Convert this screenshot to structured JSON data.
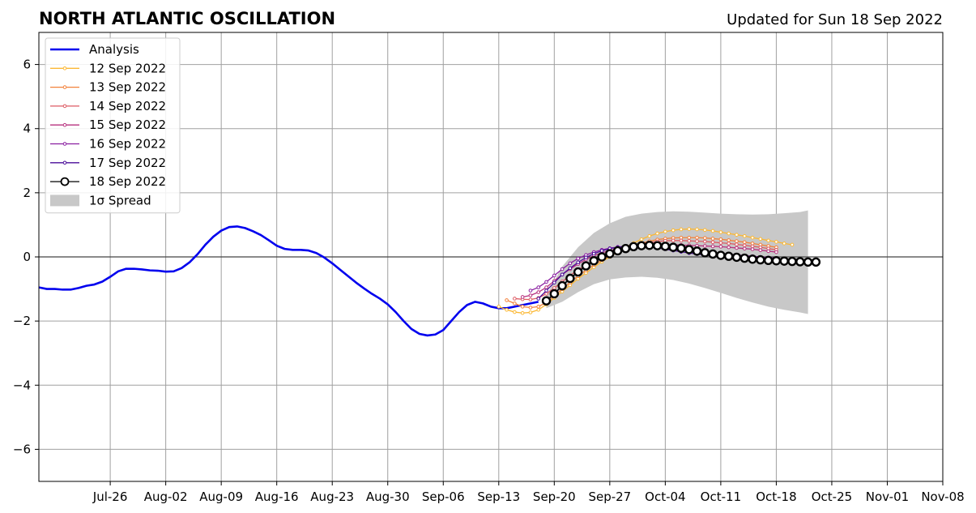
{
  "chart_data": {
    "type": "line",
    "title": "NORTH ATLANTIC OSCILLATION",
    "subtitle": "Updated for Sun 18 Sep 2022",
    "ylim": [
      -7,
      7
    ],
    "yticks": [
      -6,
      -4,
      -2,
      0,
      2,
      4,
      6
    ],
    "ytick_labels": [
      "−6",
      "−4",
      "−2",
      "0",
      "2",
      "4",
      "6"
    ],
    "xlim": [
      "2022-07-17",
      "2022-11-08"
    ],
    "xtick_dates": [
      "2022-07-26",
      "2022-08-02",
      "2022-08-09",
      "2022-08-16",
      "2022-08-23",
      "2022-08-30",
      "2022-09-06",
      "2022-09-13",
      "2022-09-20",
      "2022-09-27",
      "2022-10-04",
      "2022-10-11",
      "2022-10-18",
      "2022-10-25",
      "2022-11-01",
      "2022-11-08"
    ],
    "xtick_labels": [
      "Jul-26",
      "Aug-02",
      "Aug-09",
      "Aug-16",
      "Aug-23",
      "Aug-30",
      "Sep-06",
      "Sep-13",
      "Sep-20",
      "Sep-27",
      "Oct-04",
      "Oct-11",
      "Oct-18",
      "Oct-25",
      "Nov-01",
      "Nov-08"
    ],
    "grid": true,
    "zero_line": true,
    "legend_position": "top-left",
    "analysis": {
      "name": "Analysis",
      "color": "#0000ee",
      "x": [
        "2022-07-17",
        "2022-07-18",
        "2022-07-19",
        "2022-07-20",
        "2022-07-21",
        "2022-07-22",
        "2022-07-23",
        "2022-07-24",
        "2022-07-25",
        "2022-07-26",
        "2022-07-27",
        "2022-07-28",
        "2022-07-29",
        "2022-07-30",
        "2022-07-31",
        "2022-08-01",
        "2022-08-02",
        "2022-08-03",
        "2022-08-04",
        "2022-08-05",
        "2022-08-06",
        "2022-08-07",
        "2022-08-08",
        "2022-08-09",
        "2022-08-10",
        "2022-08-11",
        "2022-08-12",
        "2022-08-13",
        "2022-08-14",
        "2022-08-15",
        "2022-08-16",
        "2022-08-17",
        "2022-08-18",
        "2022-08-19",
        "2022-08-20",
        "2022-08-21",
        "2022-08-22",
        "2022-08-23",
        "2022-08-24",
        "2022-08-25",
        "2022-08-26",
        "2022-08-27",
        "2022-08-28",
        "2022-08-29",
        "2022-08-30",
        "2022-08-31",
        "2022-09-01",
        "2022-09-02",
        "2022-09-03",
        "2022-09-04",
        "2022-09-05",
        "2022-09-06",
        "2022-09-07",
        "2022-09-08",
        "2022-09-09",
        "2022-09-10",
        "2022-09-11",
        "2022-09-12",
        "2022-09-13",
        "2022-09-14",
        "2022-09-15",
        "2022-09-16",
        "2022-09-17",
        "2022-09-18"
      ],
      "y": [
        -0.95,
        -1.0,
        -1.0,
        -1.02,
        -1.02,
        -0.97,
        -0.9,
        -0.86,
        -0.77,
        -0.62,
        -0.45,
        -0.37,
        -0.37,
        -0.39,
        -0.42,
        -0.43,
        -0.46,
        -0.45,
        -0.35,
        -0.17,
        0.08,
        0.38,
        0.63,
        0.82,
        0.93,
        0.95,
        0.9,
        0.8,
        0.68,
        0.52,
        0.35,
        0.25,
        0.22,
        0.22,
        0.2,
        0.12,
        -0.02,
        -0.2,
        -0.4,
        -0.6,
        -0.8,
        -0.98,
        -1.15,
        -1.3,
        -1.48,
        -1.72,
        -2.0,
        -2.25,
        -2.4,
        -2.45,
        -2.42,
        -2.28,
        -2.0,
        -1.72,
        -1.5,
        -1.4,
        -1.45,
        -1.55,
        -1.6,
        -1.6,
        -1.55,
        -1.5,
        -1.45,
        -1.4
      ]
    },
    "forecasts": [
      {
        "name": "12 Sep 2022",
        "color": "#fbb834",
        "start": "2022-09-13",
        "y": [
          -1.55,
          -1.65,
          -1.72,
          -1.75,
          -1.73,
          -1.65,
          -1.48,
          -1.28,
          -1.08,
          -0.88,
          -0.68,
          -0.5,
          -0.32,
          -0.15,
          0.0,
          0.15,
          0.3,
          0.43,
          0.55,
          0.65,
          0.73,
          0.79,
          0.83,
          0.86,
          0.87,
          0.86,
          0.84,
          0.81,
          0.77,
          0.73,
          0.69,
          0.65,
          0.6,
          0.56,
          0.51,
          0.47,
          0.42,
          0.38
        ]
      },
      {
        "name": "13 Sep 2022",
        "color": "#f3813a",
        "start": "2022-09-14",
        "y": [
          -1.35,
          -1.45,
          -1.55,
          -1.58,
          -1.55,
          -1.42,
          -1.22,
          -1.0,
          -0.8,
          -0.6,
          -0.42,
          -0.25,
          -0.1,
          0.03,
          0.15,
          0.26,
          0.35,
          0.43,
          0.49,
          0.54,
          0.57,
          0.59,
          0.6,
          0.6,
          0.6,
          0.59,
          0.57,
          0.55,
          0.52,
          0.49,
          0.46,
          0.42,
          0.38,
          0.34,
          0.3
        ]
      },
      {
        "name": "14 Sep 2022",
        "color": "#dd5a63",
        "start": "2022-09-15",
        "y": [
          -1.3,
          -1.32,
          -1.33,
          -1.28,
          -1.15,
          -0.97,
          -0.77,
          -0.58,
          -0.4,
          -0.25,
          -0.12,
          0.0,
          0.1,
          0.2,
          0.28,
          0.35,
          0.41,
          0.45,
          0.48,
          0.5,
          0.51,
          0.51,
          0.5,
          0.49,
          0.48,
          0.46,
          0.44,
          0.42,
          0.39,
          0.36,
          0.33,
          0.3,
          0.26,
          0.22
        ]
      },
      {
        "name": "15 Sep 2022",
        "color": "#b7317e",
        "start": "2022-09-16",
        "y": [
          -1.25,
          -1.2,
          -1.1,
          -0.95,
          -0.75,
          -0.55,
          -0.38,
          -0.22,
          -0.08,
          0.04,
          0.13,
          0.2,
          0.26,
          0.3,
          0.33,
          0.35,
          0.37,
          0.38,
          0.38,
          0.38,
          0.37,
          0.36,
          0.35,
          0.34,
          0.33,
          0.32,
          0.3,
          0.28,
          0.26,
          0.24,
          0.21,
          0.18,
          0.15
        ]
      },
      {
        "name": "16 Sep 2022",
        "color": "#8a1ea1",
        "start": "2022-09-17",
        "y": [
          -1.05,
          -0.95,
          -0.78,
          -0.58,
          -0.38,
          -0.2,
          -0.05,
          0.06,
          0.15,
          0.22,
          0.27,
          0.31,
          0.33,
          0.34,
          0.34,
          0.33,
          0.31,
          0.29,
          0.26,
          0.23,
          0.2,
          0.17,
          0.14,
          0.12,
          0.1,
          0.08,
          0.06,
          0.04,
          0.02,
          0.0,
          -0.02,
          -0.04
        ]
      },
      {
        "name": "17 Sep 2022",
        "color": "#4a0c99",
        "start": "2022-09-18",
        "y": [
          -1.3,
          -1.05,
          -0.8,
          -0.55,
          -0.35,
          -0.17,
          -0.02,
          0.1,
          0.19,
          0.26,
          0.3,
          0.33,
          0.34,
          0.33,
          0.31,
          0.28,
          0.24,
          0.2,
          0.16,
          0.12,
          0.09,
          0.06,
          0.03,
          0.0,
          -0.02,
          -0.04,
          -0.06,
          -0.08,
          -0.09,
          -0.1,
          -0.11
        ]
      },
      {
        "name": "18 Sep 2022",
        "color": "#000000",
        "start": "2022-09-19",
        "y": [
          -1.37,
          -1.15,
          -0.9,
          -0.67,
          -0.47,
          -0.28,
          -0.12,
          0.0,
          0.1,
          0.19,
          0.26,
          0.32,
          0.35,
          0.36,
          0.35,
          0.33,
          0.3,
          0.27,
          0.23,
          0.18,
          0.13,
          0.09,
          0.05,
          0.02,
          -0.01,
          -0.04,
          -0.07,
          -0.09,
          -0.11,
          -0.12,
          -0.13,
          -0.14,
          -0.15,
          -0.16,
          -0.16
        ]
      }
    ],
    "spread": {
      "name": "1σ Spread",
      "color": "#c8c8c8",
      "x": [
        "2022-09-19",
        "2022-09-21",
        "2022-09-23",
        "2022-09-25",
        "2022-09-27",
        "2022-09-29",
        "2022-10-01",
        "2022-10-03",
        "2022-10-05",
        "2022-10-07",
        "2022-10-09",
        "2022-10-11",
        "2022-10-13",
        "2022-10-15",
        "2022-10-17",
        "2022-10-19",
        "2022-10-21",
        "2022-10-22"
      ],
      "upper": [
        -1.2,
        -0.3,
        0.3,
        0.75,
        1.05,
        1.25,
        1.35,
        1.4,
        1.42,
        1.41,
        1.38,
        1.35,
        1.33,
        1.32,
        1.33,
        1.36,
        1.4,
        1.45
      ],
      "lower": [
        -1.6,
        -1.4,
        -1.1,
        -0.85,
        -0.7,
        -0.64,
        -0.62,
        -0.65,
        -0.72,
        -0.83,
        -0.97,
        -1.12,
        -1.28,
        -1.42,
        -1.55,
        -1.65,
        -1.73,
        -1.78
      ]
    }
  },
  "legend": {
    "analysis_label": "Analysis",
    "spread_label": "1σ Spread"
  }
}
